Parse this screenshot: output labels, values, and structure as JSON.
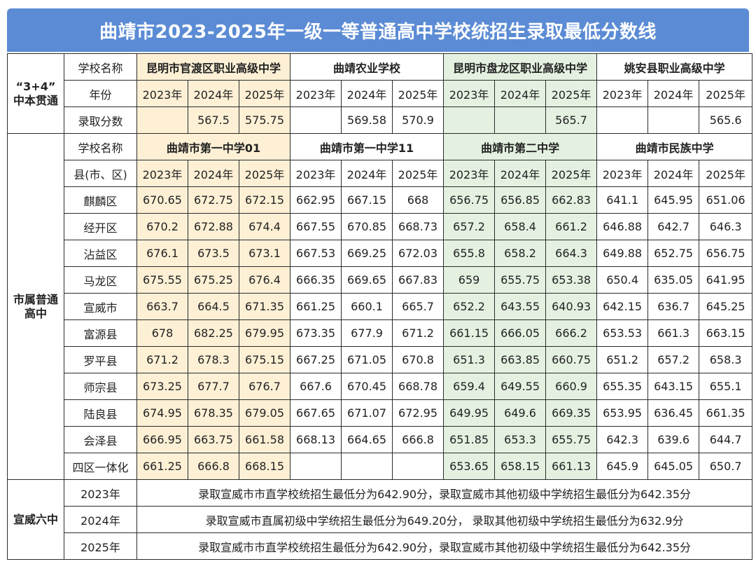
{
  "title": "曲靖市2023-2025年一级一等普通高中学校统招生录取最低分数线",
  "section1": {
    "category": "“3+4”\n中本贯通",
    "row_school_label": "学校名称",
    "row_year_label": "年份",
    "row_score_label": "录取分数",
    "schools": [
      "昆明市官渡区职业高级中学",
      "曲靖农业学校",
      "昆明市盘龙区职业高级中学",
      "姚安县职业高级中学"
    ],
    "years": [
      "2023年",
      "2024年",
      "2025年"
    ],
    "scores": [
      [
        "",
        "567.5",
        "575.75"
      ],
      [
        "",
        "569.58",
        "570.9"
      ],
      [
        "",
        "",
        "565.7"
      ],
      [
        "",
        "",
        "565.6"
      ]
    ]
  },
  "section2": {
    "category": "市属普通\n高中",
    "row_school_label": "学校名称",
    "row_county_label": "县(市、区)",
    "schools": [
      "曲靖市第一中学01",
      "曲靖市第一中学11",
      "曲靖市第二中学",
      "曲靖市民族中学"
    ],
    "years": [
      "2023年",
      "2024年",
      "2025年"
    ],
    "rows": [
      {
        "county": "麒麟区",
        "values": [
          "670.65",
          "672.75",
          "672.15",
          "662.95",
          "667.15",
          "668",
          "656.75",
          "656.85",
          "662.83",
          "641.1",
          "645.95",
          "651.06"
        ]
      },
      {
        "county": "经开区",
        "values": [
          "670.2",
          "672.88",
          "674.4",
          "667.55",
          "670.85",
          "668.73",
          "657.2",
          "658.4",
          "661.2",
          "646.88",
          "642.7",
          "646.3"
        ]
      },
      {
        "county": "沾益区",
        "values": [
          "676.1",
          "673.5",
          "673.1",
          "667.53",
          "669.25",
          "672.03",
          "655.8",
          "658.2",
          "664.3",
          "649.88",
          "652.75",
          "656.75"
        ]
      },
      {
        "county": "马龙区",
        "values": [
          "675.55",
          "675.25",
          "676.4",
          "666.35",
          "669.65",
          "667.83",
          "659",
          "655.75",
          "653.38",
          "650.4",
          "635.05",
          "641.95"
        ]
      },
      {
        "county": "宣威市",
        "values": [
          "663.7",
          "664.5",
          "671.35",
          "661.25",
          "660.1",
          "665.7",
          "652.2",
          "643.55",
          "640.93",
          "642.15",
          "636.7",
          "645.25"
        ]
      },
      {
        "county": "富源县",
        "values": [
          "678",
          "682.25",
          "679.95",
          "673.35",
          "677.9",
          "671.2",
          "661.15",
          "666.05",
          "666.2",
          "653.53",
          "661.3",
          "663.15"
        ]
      },
      {
        "county": "罗平县",
        "values": [
          "671.2",
          "678.3",
          "675.15",
          "667.25",
          "671.05",
          "670.8",
          "651.3",
          "663.85",
          "660.75",
          "651.2",
          "657.2",
          "658.3"
        ]
      },
      {
        "county": "师宗县",
        "values": [
          "673.25",
          "677.7",
          "676.7",
          "667.6",
          "670.45",
          "668.78",
          "659.4",
          "649.55",
          "660.9",
          "655.35",
          "643.15",
          "655.1"
        ]
      },
      {
        "county": "陆良县",
        "values": [
          "674.95",
          "678.35",
          "679.05",
          "667.65",
          "671.07",
          "672.95",
          "649.95",
          "649.6",
          "669.35",
          "653.95",
          "636.45",
          "661.35"
        ]
      },
      {
        "county": "会泽县",
        "values": [
          "666.95",
          "663.75",
          "661.58",
          "668.13",
          "664.65",
          "666.8",
          "651.85",
          "653.3",
          "655.75",
          "642.3",
          "639.6",
          "644.7"
        ]
      },
      {
        "county": "四区一体化",
        "values": [
          "661.25",
          "666.8",
          "668.15",
          "",
          "",
          "",
          "653.65",
          "658.15",
          "661.13",
          "645.9",
          "645.05",
          "650.7"
        ]
      }
    ]
  },
  "section3": {
    "category": "宣威六中",
    "rows": [
      {
        "year": "2023年",
        "note": "录取宣威市市直学校统招生最低分为642.90分，录取宣威市其他初级中学统招生最低分为642.35分"
      },
      {
        "year": "2024年",
        "note": "录取宣威市直属初级中学统招生最低分为649.20分， 录取其他初级中学统招生最低分为632.9分"
      },
      {
        "year": "2025年",
        "note": "录取宣威市市直学校统招生最低分为642.90分，录取宣威市其他初级中学统招生最低分为642.35分"
      }
    ]
  },
  "colors": {
    "title_bg": "#5b8bd4",
    "school1_bg": "#fdf0d5",
    "school3_bg": "#e4f1e1",
    "border": "#2c2c2c"
  }
}
